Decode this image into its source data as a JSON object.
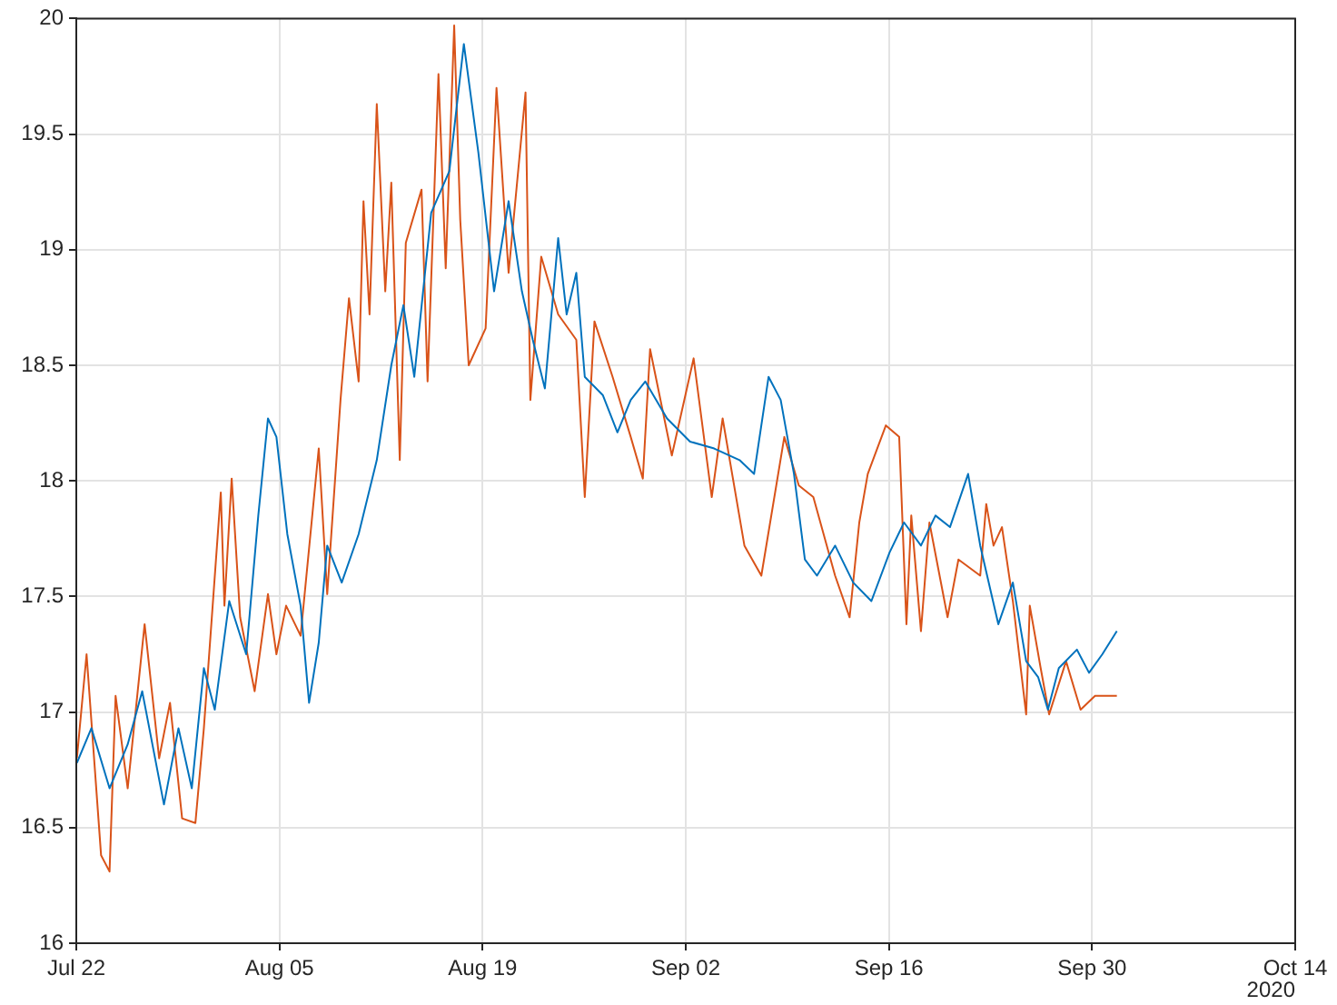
{
  "chart_data": {
    "type": "line",
    "x": [
      "2020-07-22T01:00",
      "2020-07-23T01:00",
      "2020-07-24T07:00",
      "2020-07-25T13:00",
      "2020-07-26T13:00",
      "2020-07-28T01:00",
      "2020-07-29T01:00",
      "2020-07-29T23:00",
      "2020-07-30T19:00",
      "2020-07-31T13:00",
      "2020-08-01T13:00",
      "2020-08-02T17:00",
      "2020-08-03T13:00",
      "2020-08-04T05:00",
      "2020-08-04T19:00",
      "2020-08-05T13:00",
      "2020-08-06T11:00",
      "2020-08-07T01:00",
      "2020-08-07T17:00",
      "2020-08-08T07:00",
      "2020-08-09T07:00",
      "2020-08-10T11:00",
      "2020-08-11T17:00",
      "2020-08-12T17:00",
      "2020-08-13T13:00",
      "2020-08-14T07:00",
      "2020-08-15T11:00",
      "2020-08-16T17:00",
      "2020-08-17T17:00",
      "2020-08-18T17:00",
      "2020-08-19T19:00",
      "2020-08-20T19:00",
      "2020-08-21T17:00",
      "2020-08-22T11:00",
      "2020-08-23T07:00",
      "2020-08-24T05:00",
      "2020-08-24T19:00",
      "2020-08-25T11:00",
      "2020-08-26T01:00",
      "2020-08-27T07:00",
      "2020-08-28T07:00",
      "2020-08-29T05:00",
      "2020-08-30T05:00",
      "2020-08-31T17:00",
      "2020-09-02T07:00",
      "2020-09-03T23:00",
      "2020-09-05T17:00",
      "2020-09-06T17:00",
      "2020-09-07T17:00",
      "2020-09-08T13:00",
      "2020-09-09T11:00",
      "2020-09-10T05:00",
      "2020-09-11T01:00",
      "2020-09-12T07:00",
      "2020-09-13T13:00",
      "2020-09-14T19:00",
      "2020-09-16T01:00",
      "2020-09-17T01:00",
      "2020-09-18T05:00",
      "2020-09-19T05:00",
      "2020-09-20T05:00",
      "2020-09-21T11:00",
      "2020-09-22T07:00",
      "2020-09-23T13:00",
      "2020-09-24T13:00",
      "2020-09-25T11:00",
      "2020-09-26T07:00",
      "2020-09-26T23:00",
      "2020-09-27T17:00",
      "2020-09-28T23:00",
      "2020-09-29T19:00",
      "2020-09-30T17:00",
      "2020-10-01T17:00"
    ],
    "series": [
      {
        "color": "#0072bd",
        "values": [
          16.78,
          16.93,
          16.67,
          16.86,
          17.09,
          16.6,
          16.93,
          16.67,
          17.19,
          17.01,
          17.48,
          17.25,
          17.85,
          18.27,
          18.19,
          17.77,
          17.46,
          17.04,
          17.3,
          17.72,
          17.56,
          17.77,
          18.09,
          18.5,
          18.76,
          18.45,
          19.16,
          19.34,
          19.89,
          19.42,
          18.82,
          19.21,
          18.82,
          18.61,
          18.4,
          19.05,
          18.72,
          18.9,
          18.45,
          18.37,
          18.21,
          18.35,
          18.43,
          18.27,
          18.17,
          18.14,
          18.09,
          18.03,
          18.45,
          18.35,
          18.03,
          17.66,
          17.59,
          17.72,
          17.56,
          17.48,
          17.69,
          17.82,
          17.72,
          17.85,
          17.8,
          18.03,
          17.72,
          17.38,
          17.56,
          17.22,
          17.15,
          17.01,
          17.19,
          17.27,
          17.17,
          17.25,
          17.35
        ]
      },
      {
        "color": "#d95319",
        "x": [
          "2020-07-22T01:00",
          "2020-07-22T17:00",
          "2020-07-23T17:00",
          "2020-07-24T07:00",
          "2020-07-24T17:00",
          "2020-07-25T13:00",
          "2020-07-26T17:00",
          "2020-07-27T17:00",
          "2020-07-28T11:00",
          "2020-07-29T07:00",
          "2020-07-30T05:00",
          "2020-07-30T19:00",
          "2020-07-31T23:00",
          "2020-08-01T05:00",
          "2020-08-01T17:00",
          "2020-08-02T07:00",
          "2020-08-03T07:00",
          "2020-08-04T05:00",
          "2020-08-04T19:00",
          "2020-08-05T11:00",
          "2020-08-06T11:00",
          "2020-08-07T17:00",
          "2020-08-08T07:00",
          "2020-08-09T05:00",
          "2020-08-09T19:00",
          "2020-08-10T11:00",
          "2020-08-10T19:00",
          "2020-08-11T05:00",
          "2020-08-11T17:00",
          "2020-08-12T07:00",
          "2020-08-12T17:00",
          "2020-08-13T07:00",
          "2020-08-13T17:00",
          "2020-08-14T19:00",
          "2020-08-15T05:00",
          "2020-08-15T23:00",
          "2020-08-16T11:00",
          "2020-08-17T01:00",
          "2020-08-17T11:00",
          "2020-08-18T01:00",
          "2020-08-19T05:00",
          "2020-08-19T23:00",
          "2020-08-20T19:00",
          "2020-08-21T23:00",
          "2020-08-22T07:00",
          "2020-08-23T01:00",
          "2020-08-24T05:00",
          "2020-08-25T11:00",
          "2020-08-26T01:00",
          "2020-08-26T17:00",
          "2020-08-27T23:00",
          "2020-08-29T05:00",
          "2020-08-30T01:00",
          "2020-08-30T13:00",
          "2020-09-01T01:00",
          "2020-09-02T13:00",
          "2020-09-03T19:00",
          "2020-09-04T13:00",
          "2020-09-06T01:00",
          "2020-09-07T05:00",
          "2020-09-08T19:00",
          "2020-09-09T19:00",
          "2020-09-10T19:00",
          "2020-09-12T07:00",
          "2020-09-13T07:00",
          "2020-09-13T23:00",
          "2020-09-14T13:00",
          "2020-09-15T19:00",
          "2020-09-16T17:00",
          "2020-09-17T05:00",
          "2020-09-17T13:00",
          "2020-09-18T05:00",
          "2020-09-18T19:00",
          "2020-09-20T01:00",
          "2020-09-20T19:00",
          "2020-09-22T07:00",
          "2020-09-22T17:00",
          "2020-09-23T05:00",
          "2020-09-23T19:00",
          "2020-09-24T13:00",
          "2020-09-25T11:00",
          "2020-09-25T17:00",
          "2020-09-26T11:00",
          "2020-09-27T01:00",
          "2020-09-28T05:00",
          "2020-09-29T05:00",
          "2020-09-30T05:00",
          "2020-10-01T17:00"
        ],
        "values": [
          16.8,
          17.25,
          16.38,
          16.31,
          17.07,
          16.67,
          17.38,
          16.8,
          17.04,
          16.54,
          16.52,
          16.93,
          17.95,
          17.46,
          18.01,
          17.41,
          17.09,
          17.51,
          17.25,
          17.46,
          17.33,
          18.14,
          17.51,
          18.35,
          18.79,
          18.43,
          19.21,
          18.72,
          19.63,
          18.82,
          19.29,
          18.09,
          19.03,
          19.26,
          18.43,
          19.76,
          18.92,
          19.97,
          19.13,
          18.5,
          18.66,
          19.7,
          18.9,
          19.68,
          18.35,
          18.97,
          18.72,
          18.61,
          17.93,
          18.69,
          18.45,
          18.19,
          18.01,
          18.57,
          18.11,
          18.53,
          17.93,
          18.27,
          17.72,
          17.59,
          18.19,
          17.98,
          17.93,
          17.59,
          17.41,
          17.82,
          18.03,
          18.24,
          18.19,
          17.38,
          17.85,
          17.35,
          17.82,
          17.41,
          17.66,
          17.59,
          17.9,
          17.72,
          17.8,
          17.48,
          16.99,
          17.46,
          17.19,
          16.99,
          17.22,
          17.01,
          17.07,
          17.07
        ]
      }
    ],
    "xlim": [
      "2020-07-22",
      "2020-10-14"
    ],
    "xticks": [
      {
        "value": "2020-07-22",
        "label": "Jul 22"
      },
      {
        "value": "2020-08-05",
        "label": "Aug 05"
      },
      {
        "value": "2020-08-19",
        "label": "Aug 19"
      },
      {
        "value": "2020-09-02",
        "label": "Sep 02"
      },
      {
        "value": "2020-09-16",
        "label": "Sep 16"
      },
      {
        "value": "2020-09-30",
        "label": "Sep 30"
      },
      {
        "value": "2020-10-14",
        "label": "Oct 14"
      }
    ],
    "ylim": [
      16,
      20
    ],
    "yticks": [
      16,
      16.5,
      17,
      17.5,
      18,
      18.5,
      19,
      19.5,
      20
    ],
    "annotations": [
      "2020"
    ],
    "grid": true,
    "legend": false,
    "marker": "none",
    "line_style": "solid"
  }
}
